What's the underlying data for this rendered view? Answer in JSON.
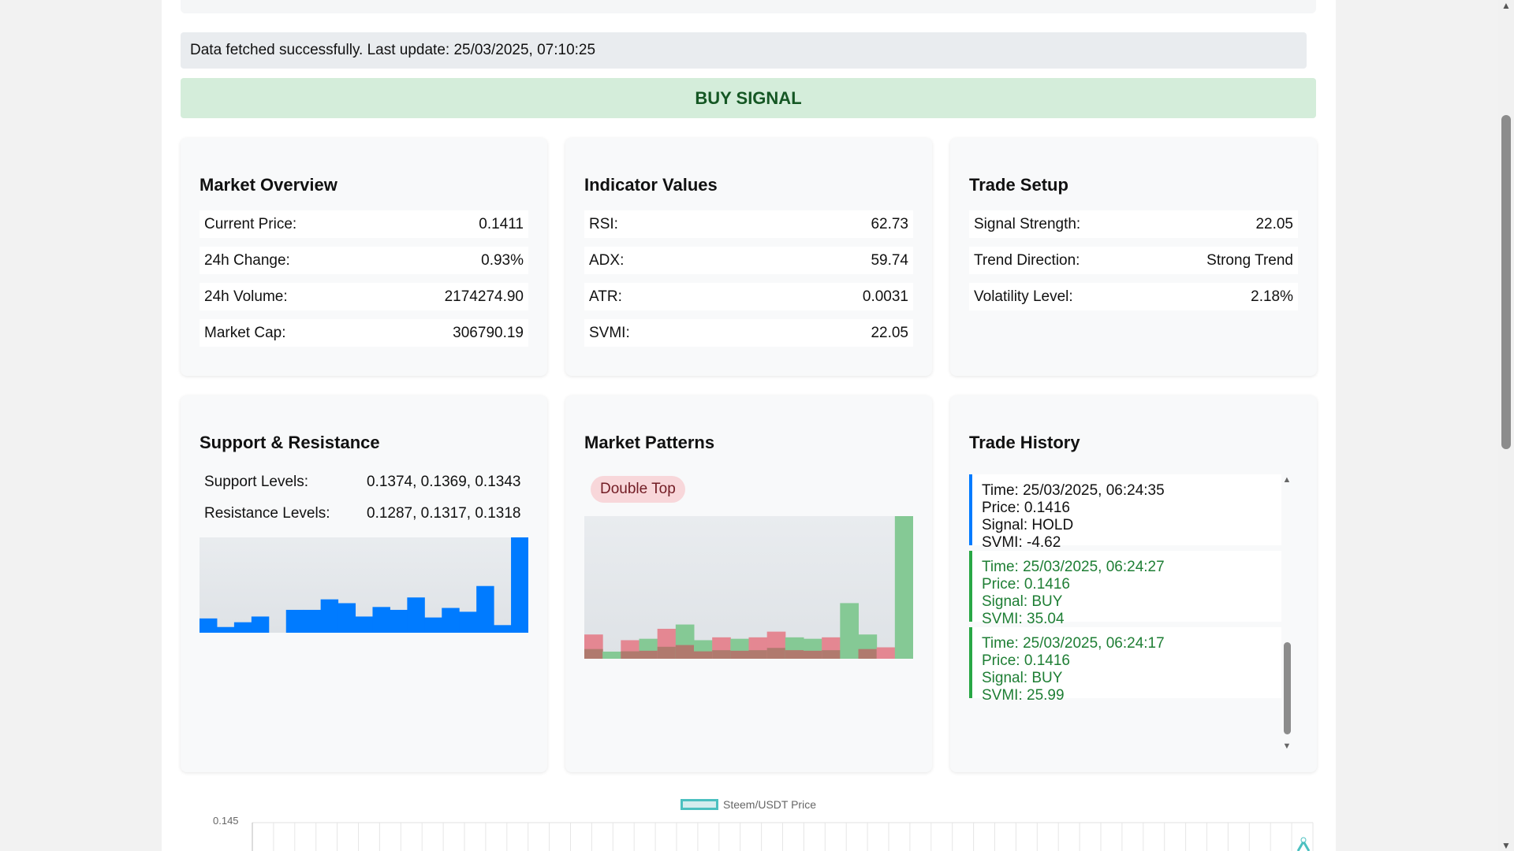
{
  "status": {
    "message": "Data fetched successfully. Last update: 25/03/2025, 07:10:25"
  },
  "signal": {
    "label": "BUY SIGNAL"
  },
  "market_overview": {
    "title": "Market Overview",
    "rows": [
      {
        "label": "Current Price:",
        "value": "0.1411"
      },
      {
        "label": "24h Change:",
        "value": "0.93%"
      },
      {
        "label": "24h Volume:",
        "value": "2174274.90"
      },
      {
        "label": "Market Cap:",
        "value": "306790.19"
      }
    ]
  },
  "indicators": {
    "title": "Indicator Values",
    "rows": [
      {
        "label": "RSI:",
        "value": "62.73"
      },
      {
        "label": "ADX:",
        "value": "59.74"
      },
      {
        "label": "ATR:",
        "value": "0.0031"
      },
      {
        "label": "SVMI:",
        "value": "22.05"
      }
    ]
  },
  "trade_setup": {
    "title": "Trade Setup",
    "rows": [
      {
        "label": "Signal Strength:",
        "value": "22.05"
      },
      {
        "label": "Trend Direction:",
        "value": "Strong Trend"
      },
      {
        "label": "Volatility Level:",
        "value": "2.18%"
      }
    ]
  },
  "support_resistance": {
    "title": "Support & Resistance",
    "support_label": "Support Levels:",
    "support_value": "0.1374, 0.1369, 0.1343",
    "resistance_label": "Resistance Levels:",
    "resistance_value": "0.1287, 0.1317, 0.1318",
    "bars": [
      0.15,
      0.06,
      0.11,
      0.17,
      0.0,
      0.24,
      0.24,
      0.35,
      0.31,
      0.17,
      0.27,
      0.24,
      0.37,
      0.16,
      0.26,
      0.22,
      0.49,
      0.08,
      1.0
    ],
    "bar_color": "#007bff"
  },
  "market_patterns": {
    "title": "Market Patterns",
    "pattern": "Double Top",
    "bars": [
      {
        "h": 0.17,
        "c": "red"
      },
      {
        "h": 0.05,
        "c": "green"
      },
      {
        "h": 0.13,
        "c": "red"
      },
      {
        "h": 0.14,
        "c": "green"
      },
      {
        "h": 0.21,
        "c": "red"
      },
      {
        "h": 0.24,
        "c": "green"
      },
      {
        "h": 0.13,
        "c": "green"
      },
      {
        "h": 0.15,
        "c": "red"
      },
      {
        "h": 0.14,
        "c": "green"
      },
      {
        "h": 0.15,
        "c": "red"
      },
      {
        "h": 0.19,
        "c": "red"
      },
      {
        "h": 0.15,
        "c": "green"
      },
      {
        "h": 0.14,
        "c": "green"
      },
      {
        "h": 0.15,
        "c": "red"
      },
      {
        "h": 0.39,
        "c": "green"
      },
      {
        "h": 0.17,
        "c": "green"
      },
      {
        "h": 0.08,
        "c": "red"
      },
      {
        "h": 1.0,
        "c": "green"
      }
    ],
    "colors": {
      "green": "#85c995",
      "red": "#e48792",
      "overlap": "#b07a6e"
    }
  },
  "trade_history": {
    "title": "Trade History",
    "items": [
      {
        "type": "HOLD",
        "time": "Time: 25/03/2025, 06:24:35",
        "price": "Price: 0.1416",
        "signal": "Signal: HOLD",
        "svmi": "SVMI: -4.62"
      },
      {
        "type": "BUY",
        "time": "Time: 25/03/2025, 06:24:27",
        "price": "Price: 0.1416",
        "signal": "Signal: BUY",
        "svmi": "SVMI: 35.04"
      },
      {
        "type": "BUY",
        "time": "Time: 25/03/2025, 06:24:17",
        "price": "Price: 0.1416",
        "signal": "Signal: BUY",
        "svmi": "SVMI: 25.99"
      }
    ]
  },
  "price_chart": {
    "legend": "Steem/USDT Price",
    "y_tick": "0.145",
    "line_color": "#4bc0c0"
  }
}
